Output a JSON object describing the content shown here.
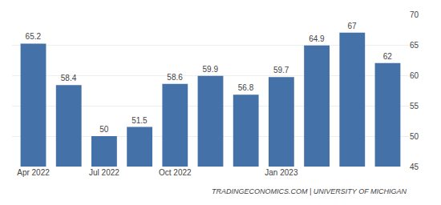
{
  "chart_data": {
    "type": "bar",
    "categories": [
      "Apr 2022",
      null,
      "Jul 2022",
      null,
      "Oct 2022",
      null,
      null,
      "Jan 2023",
      null,
      null,
      null
    ],
    "values": [
      65.2,
      58.4,
      50.0,
      51.5,
      58.6,
      59.9,
      56.8,
      59.7,
      64.9,
      67.0,
      62.0
    ],
    "color": "#4472a8",
    "ylim": [
      45,
      70
    ],
    "yticks": [
      45,
      50,
      55,
      60,
      65,
      70
    ],
    "grid": true,
    "data_labels": true,
    "annotations": [
      "TRADINGECONOMICS.COM | UNIVERSITY OF MICHIGAN"
    ]
  }
}
